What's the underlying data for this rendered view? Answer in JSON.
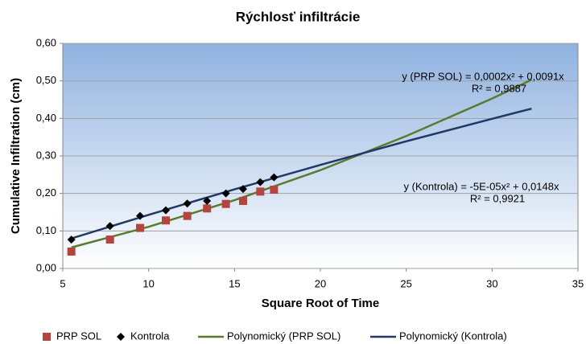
{
  "chart_data": {
    "type": "scatter",
    "title": "Rýchlosť infiltrácie",
    "x_label": "Square Root of Time",
    "y_label": "Cumulative Infiltration (cm)",
    "xlim": [
      5,
      35
    ],
    "xticks": [
      5,
      10,
      15,
      20,
      25,
      30,
      35
    ],
    "ylim": [
      0,
      0.6
    ],
    "yticks": [
      {
        "value": 0,
        "label": "0,00"
      },
      {
        "value": 0.1,
        "label": "0,10"
      },
      {
        "value": 0.2,
        "label": "0,20"
      },
      {
        "value": 0.3,
        "label": "0,30"
      },
      {
        "value": 0.4,
        "label": "0,40"
      },
      {
        "value": 0.5,
        "label": "0,50"
      },
      {
        "value": 0.6,
        "label": "0,60"
      }
    ],
    "grid": true,
    "series": [
      {
        "name": "PRP SOL",
        "color": "#b5443f",
        "marker": "square",
        "x": [
          5.5,
          7.75,
          9.5,
          11,
          12.25,
          13.4,
          14.5,
          15.5,
          16.5,
          17.3
        ],
        "values": [
          0.045,
          0.077,
          0.108,
          0.128,
          0.14,
          0.16,
          0.172,
          0.18,
          0.205,
          0.21
        ]
      },
      {
        "name": "Kontrola",
        "color": "#000000",
        "marker": "diamond",
        "x": [
          5.5,
          7.75,
          9.5,
          11,
          12.25,
          13.4,
          14.5,
          15.5,
          16.5,
          17.3
        ],
        "values": [
          0.077,
          0.113,
          0.14,
          0.155,
          0.173,
          0.18,
          0.2,
          0.212,
          0.23,
          0.243
        ]
      },
      {
        "name": "Polynomický (PRP SOL)",
        "color": "#5a7a2e",
        "marker": "line",
        "x": [
          5.5,
          10,
          15,
          20,
          25,
          30,
          32.3
        ],
        "values": [
          0.056,
          0.111,
          0.182,
          0.262,
          0.353,
          0.453,
          0.503
        ]
      },
      {
        "name": "Polynomický (Kontrola)",
        "color": "#1f3864",
        "marker": "line",
        "x": [
          5.5,
          10,
          15,
          20,
          25,
          30,
          32.3
        ],
        "values": [
          0.08,
          0.143,
          0.211,
          0.276,
          0.339,
          0.399,
          0.426
        ]
      }
    ],
    "annotations": [
      {
        "lines": [
          "y (PRP SOL) = 0,0002x² + 0,0091x",
          "R² = 0,9887"
        ]
      },
      {
        "lines": [
          "y (Kontrola) = -5E-05x² + 0,0148x",
          "R² = 0,9921"
        ]
      }
    ]
  }
}
